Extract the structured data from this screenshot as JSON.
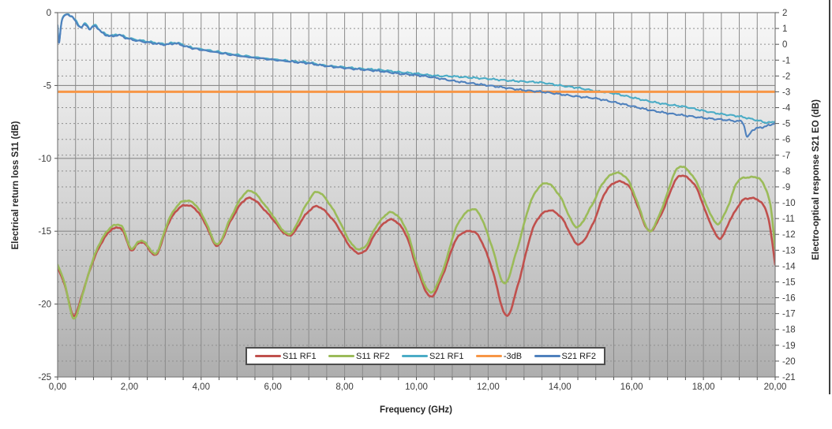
{
  "chart_data": {
    "type": "line",
    "title": "",
    "xlabel": "Frequency (GHz)",
    "ylabel_left": "Electrical return loss S11 (dB)",
    "ylabel_right": "Electro-optical response S21 EO (dB)",
    "x_range": [
      0,
      20
    ],
    "y_left_range": [
      -25,
      0
    ],
    "y_right_range": [
      -21,
      2
    ],
    "grid": {
      "x_minor_step": 0.5,
      "y_left_major_step": 5,
      "y_right_minor_step": 1
    },
    "x_tick_values": [
      0,
      2,
      4,
      6,
      8,
      10,
      12,
      14,
      16,
      18,
      20
    ],
    "x_tick_labels": [
      "0,00",
      "2,00",
      "4,00",
      "6,00",
      "8,00",
      "10,00",
      "12,00",
      "14,00",
      "16,00",
      "18,00",
      "20,00"
    ],
    "y_left_tick_values": [
      0,
      -5,
      -10,
      -15,
      -20,
      -25
    ],
    "y_left_tick_labels": [
      "0",
      "-5",
      "-10",
      "-15",
      "-20",
      "-25"
    ],
    "y_right_tick_values": [
      2,
      1,
      0,
      -1,
      -2,
      -3,
      -4,
      -5,
      -6,
      -7,
      -8,
      -9,
      -10,
      -11,
      -12,
      -13,
      -14,
      -15,
      -16,
      -17,
      -18,
      -19,
      -20,
      -21
    ],
    "y_right_tick_labels": [
      "2",
      "1",
      "0",
      "-1",
      "-2",
      "-3",
      "-4",
      "-5",
      "-6",
      "-7",
      "-8",
      "-9",
      "-10",
      "-11",
      "-12",
      "-13",
      "-14",
      "-15",
      "-16",
      "-17",
      "-18",
      "-19",
      "-20",
      "-21"
    ],
    "threshold": {
      "name": "-3dB",
      "axis": "right",
      "value": -3,
      "color": "#F79646"
    },
    "series": [
      {
        "name": "S11 RF1",
        "axis": "left",
        "color": "#C0504D",
        "points": [
          [
            0.0,
            -17.5
          ],
          [
            0.2,
            -18.7
          ],
          [
            0.45,
            -20.8
          ],
          [
            0.7,
            -19.2
          ],
          [
            0.95,
            -17.3
          ],
          [
            1.2,
            -15.9
          ],
          [
            1.45,
            -15.0
          ],
          [
            1.6,
            -14.8
          ],
          [
            1.8,
            -14.9
          ],
          [
            2.05,
            -16.3
          ],
          [
            2.25,
            -15.8
          ],
          [
            2.45,
            -15.9
          ],
          [
            2.75,
            -16.6
          ],
          [
            3.1,
            -14.4
          ],
          [
            3.45,
            -13.3
          ],
          [
            3.8,
            -13.4
          ],
          [
            4.1,
            -14.4
          ],
          [
            4.45,
            -16.0
          ],
          [
            4.8,
            -14.4
          ],
          [
            5.15,
            -13.0
          ],
          [
            5.45,
            -12.8
          ],
          [
            5.9,
            -13.9
          ],
          [
            6.45,
            -15.3
          ],
          [
            6.9,
            -13.9
          ],
          [
            7.25,
            -13.3
          ],
          [
            7.7,
            -14.3
          ],
          [
            8.2,
            -16.2
          ],
          [
            8.55,
            -16.4
          ],
          [
            8.9,
            -15.0
          ],
          [
            9.3,
            -14.2
          ],
          [
            9.7,
            -15.2
          ],
          [
            10.05,
            -17.8
          ],
          [
            10.4,
            -19.5
          ],
          [
            10.75,
            -17.9
          ],
          [
            11.1,
            -15.6
          ],
          [
            11.45,
            -15.0
          ],
          [
            11.75,
            -15.4
          ],
          [
            12.1,
            -17.5
          ],
          [
            12.5,
            -20.8
          ],
          [
            12.85,
            -18.5
          ],
          [
            13.25,
            -14.8
          ],
          [
            13.65,
            -13.6
          ],
          [
            14.05,
            -14.1
          ],
          [
            14.5,
            -15.9
          ],
          [
            14.9,
            -14.6
          ],
          [
            15.25,
            -12.4
          ],
          [
            15.6,
            -11.6
          ],
          [
            15.95,
            -12.0
          ],
          [
            16.2,
            -13.5
          ],
          [
            16.5,
            -15.0
          ],
          [
            16.85,
            -13.7
          ],
          [
            17.2,
            -11.6
          ],
          [
            17.45,
            -11.2
          ],
          [
            17.8,
            -12.0
          ],
          [
            18.1,
            -13.9
          ],
          [
            18.45,
            -15.5
          ],
          [
            18.75,
            -14.2
          ],
          [
            19.05,
            -13.0
          ],
          [
            19.25,
            -12.75
          ],
          [
            19.55,
            -12.9
          ],
          [
            19.8,
            -14.0
          ],
          [
            20.0,
            -17.3
          ]
        ]
      },
      {
        "name": "S11 RF2",
        "axis": "left",
        "color": "#9BBB59",
        "points": [
          [
            0.0,
            -17.3
          ],
          [
            0.2,
            -18.6
          ],
          [
            0.45,
            -21.0
          ],
          [
            0.7,
            -19.3
          ],
          [
            0.95,
            -17.2
          ],
          [
            1.2,
            -15.7
          ],
          [
            1.45,
            -14.8
          ],
          [
            1.6,
            -14.6
          ],
          [
            1.8,
            -14.7
          ],
          [
            2.05,
            -16.2
          ],
          [
            2.25,
            -15.7
          ],
          [
            2.45,
            -15.8
          ],
          [
            2.75,
            -16.5
          ],
          [
            3.1,
            -14.2
          ],
          [
            3.45,
            -13.0
          ],
          [
            3.8,
            -13.1
          ],
          [
            4.1,
            -14.2
          ],
          [
            4.45,
            -15.9
          ],
          [
            4.8,
            -14.2
          ],
          [
            5.15,
            -12.6
          ],
          [
            5.45,
            -12.3
          ],
          [
            5.9,
            -13.6
          ],
          [
            6.45,
            -15.2
          ],
          [
            6.9,
            -13.3
          ],
          [
            7.25,
            -12.3
          ],
          [
            7.7,
            -13.6
          ],
          [
            8.2,
            -15.9
          ],
          [
            8.55,
            -16.1
          ],
          [
            8.9,
            -14.6
          ],
          [
            9.3,
            -13.7
          ],
          [
            9.7,
            -14.8
          ],
          [
            10.05,
            -17.5
          ],
          [
            10.4,
            -19.2
          ],
          [
            10.75,
            -17.6
          ],
          [
            11.1,
            -14.8
          ],
          [
            11.45,
            -13.6
          ],
          [
            11.75,
            -13.8
          ],
          [
            12.1,
            -16.0
          ],
          [
            12.45,
            -18.6
          ],
          [
            12.8,
            -16.3
          ],
          [
            13.2,
            -12.9
          ],
          [
            13.6,
            -11.7
          ],
          [
            14.0,
            -12.6
          ],
          [
            14.45,
            -14.7
          ],
          [
            14.85,
            -13.4
          ],
          [
            15.2,
            -11.7
          ],
          [
            15.55,
            -11.0
          ],
          [
            15.9,
            -11.5
          ],
          [
            16.2,
            -13.3
          ],
          [
            16.5,
            -15.0
          ],
          [
            16.85,
            -13.4
          ],
          [
            17.2,
            -11.0
          ],
          [
            17.45,
            -10.6
          ],
          [
            17.8,
            -11.6
          ],
          [
            18.1,
            -13.3
          ],
          [
            18.4,
            -14.5
          ],
          [
            18.7,
            -13.2
          ],
          [
            18.95,
            -11.6
          ],
          [
            19.3,
            -11.3
          ],
          [
            19.6,
            -11.5
          ],
          [
            19.85,
            -13.0
          ],
          [
            20.0,
            -16.2
          ]
        ]
      },
      {
        "name": "S21 RF1",
        "axis": "right",
        "color": "#4BACC6",
        "points": [
          [
            0.0,
            1.2
          ],
          [
            0.04,
            0.15
          ],
          [
            0.12,
            1.55
          ],
          [
            0.25,
            1.9
          ],
          [
            0.4,
            1.75
          ],
          [
            0.55,
            1.35
          ],
          [
            0.65,
            1.1
          ],
          [
            0.78,
            1.3
          ],
          [
            0.9,
            1.0
          ],
          [
            1.05,
            1.2
          ],
          [
            1.25,
            0.75
          ],
          [
            1.5,
            0.55
          ],
          [
            1.7,
            0.62
          ],
          [
            2.0,
            0.38
          ],
          [
            2.5,
            0.18
          ],
          [
            3.0,
            0.02
          ],
          [
            3.3,
            0.1
          ],
          [
            3.7,
            -0.18
          ],
          [
            4.4,
            -0.45
          ],
          [
            5.1,
            -0.7
          ],
          [
            5.9,
            -0.92
          ],
          [
            6.6,
            -1.08
          ],
          [
            7.0,
            -1.15
          ],
          [
            7.4,
            -1.32
          ],
          [
            8.0,
            -1.45
          ],
          [
            8.5,
            -1.55
          ],
          [
            9.0,
            -1.62
          ],
          [
            9.5,
            -1.75
          ],
          [
            10.0,
            -1.85
          ],
          [
            10.5,
            -1.98
          ],
          [
            11.0,
            -2.02
          ],
          [
            11.5,
            -2.1
          ],
          [
            12.0,
            -2.18
          ],
          [
            12.5,
            -2.28
          ],
          [
            13.0,
            -2.35
          ],
          [
            13.5,
            -2.42
          ],
          [
            14.0,
            -2.6
          ],
          [
            14.5,
            -2.75
          ],
          [
            15.0,
            -2.95
          ],
          [
            15.5,
            -3.1
          ],
          [
            16.0,
            -3.35
          ],
          [
            16.5,
            -3.6
          ],
          [
            17.0,
            -3.8
          ],
          [
            17.5,
            -3.95
          ],
          [
            18.0,
            -4.2
          ],
          [
            18.5,
            -4.4
          ],
          [
            19.0,
            -4.55
          ],
          [
            19.5,
            -4.8
          ],
          [
            19.8,
            -4.95
          ],
          [
            20.0,
            -4.85
          ]
        ]
      },
      {
        "name": "-3dB",
        "axis": "right",
        "color": "#F79646",
        "points": [
          [
            0.0,
            -3
          ],
          [
            20.0,
            -3
          ]
        ]
      },
      {
        "name": "S21 RF2",
        "axis": "right",
        "color": "#4F81BD",
        "points": [
          [
            0.0,
            1.2
          ],
          [
            0.04,
            0.1
          ],
          [
            0.12,
            1.5
          ],
          [
            0.25,
            1.88
          ],
          [
            0.4,
            1.72
          ],
          [
            0.55,
            1.3
          ],
          [
            0.65,
            1.05
          ],
          [
            0.78,
            1.25
          ],
          [
            0.9,
            0.95
          ],
          [
            1.05,
            1.15
          ],
          [
            1.25,
            0.7
          ],
          [
            1.5,
            0.5
          ],
          [
            1.7,
            0.58
          ],
          [
            2.0,
            0.33
          ],
          [
            2.5,
            0.12
          ],
          [
            3.0,
            -0.02
          ],
          [
            3.3,
            0.05
          ],
          [
            3.7,
            -0.22
          ],
          [
            4.4,
            -0.5
          ],
          [
            5.1,
            -0.75
          ],
          [
            5.9,
            -0.95
          ],
          [
            6.6,
            -1.12
          ],
          [
            7.0,
            -1.2
          ],
          [
            7.4,
            -1.35
          ],
          [
            8.0,
            -1.5
          ],
          [
            8.5,
            -1.6
          ],
          [
            9.0,
            -1.7
          ],
          [
            9.5,
            -1.85
          ],
          [
            10.0,
            -1.95
          ],
          [
            10.5,
            -2.1
          ],
          [
            11.0,
            -2.3
          ],
          [
            11.5,
            -2.45
          ],
          [
            12.0,
            -2.6
          ],
          [
            12.5,
            -2.75
          ],
          [
            13.0,
            -2.9
          ],
          [
            13.5,
            -3.0
          ],
          [
            14.0,
            -3.15
          ],
          [
            14.5,
            -3.3
          ],
          [
            15.0,
            -3.42
          ],
          [
            15.5,
            -3.65
          ],
          [
            16.0,
            -3.9
          ],
          [
            16.5,
            -4.15
          ],
          [
            17.0,
            -4.35
          ],
          [
            17.5,
            -4.5
          ],
          [
            18.0,
            -4.65
          ],
          [
            18.5,
            -4.75
          ],
          [
            18.9,
            -4.85
          ],
          [
            19.1,
            -4.95
          ],
          [
            19.22,
            -5.85
          ],
          [
            19.35,
            -5.45
          ],
          [
            19.5,
            -5.3
          ],
          [
            19.7,
            -5.2
          ],
          [
            19.85,
            -5.1
          ],
          [
            20.0,
            -4.95
          ]
        ]
      }
    ],
    "legend": {
      "position": "bottom-center-inside",
      "entries": [
        "S11 RF1",
        "S11 RF2",
        "S21 RF1",
        "-3dB",
        "S21 RF2"
      ]
    }
  },
  "colors": {
    "plot_bg_top": "#f8f8f8",
    "plot_bg_bottom": "#aeaeae",
    "grid_major": "#8a8a8a",
    "grid_minor_dotted": "#8f8f8f",
    "frame": "#7f7f7f",
    "tick_text": "#3b3b3b"
  }
}
